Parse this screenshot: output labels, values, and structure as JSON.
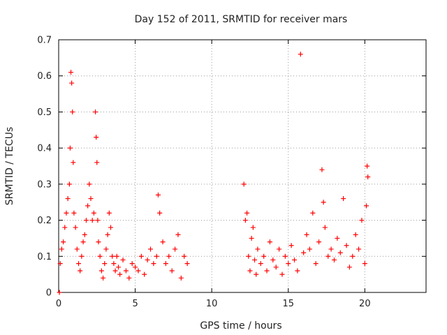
{
  "chart_data": {
    "type": "scatter",
    "title": "Day 152 of 2011, SRMTID for receiver mars",
    "xlabel": "GPS time / hours",
    "ylabel": "SRMTID / TECUs",
    "xlim": [
      0,
      24
    ],
    "ylim": [
      0,
      0.7
    ],
    "xticks": [
      0,
      5,
      10,
      15,
      20
    ],
    "xtick_labels": [
      "0",
      "5",
      "10",
      "15",
      "20"
    ],
    "yticks": [
      0,
      0.1,
      0.2,
      0.3,
      0.4,
      0.5,
      0.6,
      0.7
    ],
    "ytick_labels": [
      "0",
      "0.1",
      "0.2",
      "0.3",
      "0.4",
      "0.5",
      "0.6",
      "0.7"
    ],
    "grid": true,
    "marker": "+",
    "colors": {
      "series": "#ff0000",
      "axis": "#000000",
      "grid": "#9a9a9a"
    },
    "series": [
      {
        "name": "SRMTID",
        "x": [
          0.05,
          0.1,
          0.2,
          0.3,
          0.4,
          0.5,
          0.6,
          0.7,
          0.75,
          0.8,
          0.85,
          0.9,
          0.95,
          1.0,
          1.1,
          1.2,
          1.3,
          1.4,
          1.5,
          1.6,
          1.7,
          1.8,
          1.9,
          2.0,
          2.1,
          2.2,
          2.3,
          2.4,
          2.45,
          2.5,
          2.55,
          2.6,
          2.7,
          2.8,
          2.9,
          3.0,
          3.1,
          3.2,
          3.3,
          3.4,
          3.5,
          3.6,
          3.7,
          3.8,
          3.9,
          4.0,
          4.2,
          4.4,
          4.6,
          4.8,
          5.0,
          5.2,
          5.4,
          5.6,
          5.8,
          6.0,
          6.2,
          6.4,
          6.5,
          6.6,
          6.8,
          7.0,
          7.2,
          7.4,
          7.6,
          7.8,
          8.0,
          8.2,
          8.4,
          12.1,
          12.2,
          12.3,
          12.4,
          12.5,
          12.6,
          12.7,
          12.8,
          12.9,
          13.0,
          13.2,
          13.4,
          13.6,
          13.8,
          14.0,
          14.2,
          14.4,
          14.6,
          14.8,
          15.0,
          15.2,
          15.4,
          15.6,
          15.8,
          16.0,
          16.2,
          16.4,
          16.6,
          16.8,
          17.0,
          17.2,
          17.3,
          17.4,
          17.6,
          17.8,
          18.0,
          18.2,
          18.4,
          18.6,
          18.8,
          19.0,
          19.2,
          19.4,
          19.6,
          19.8,
          20.0,
          20.1,
          20.15,
          20.2
        ],
        "y": [
          0.0,
          0.08,
          0.12,
          0.14,
          0.18,
          0.22,
          0.26,
          0.3,
          0.4,
          0.61,
          0.58,
          0.5,
          0.36,
          0.22,
          0.18,
          0.12,
          0.08,
          0.06,
          0.1,
          0.14,
          0.16,
          0.2,
          0.24,
          0.3,
          0.26,
          0.2,
          0.22,
          0.5,
          0.43,
          0.36,
          0.2,
          0.14,
          0.1,
          0.06,
          0.04,
          0.08,
          0.12,
          0.16,
          0.22,
          0.18,
          0.1,
          0.08,
          0.06,
          0.1,
          0.07,
          0.05,
          0.09,
          0.06,
          0.04,
          0.08,
          0.07,
          0.06,
          0.1,
          0.05,
          0.09,
          0.12,
          0.08,
          0.1,
          0.27,
          0.22,
          0.14,
          0.08,
          0.1,
          0.06,
          0.12,
          0.16,
          0.04,
          0.1,
          0.08,
          0.3,
          0.2,
          0.22,
          0.1,
          0.06,
          0.15,
          0.18,
          0.09,
          0.05,
          0.12,
          0.08,
          0.1,
          0.06,
          0.14,
          0.09,
          0.07,
          0.12,
          0.05,
          0.1,
          0.08,
          0.13,
          0.09,
          0.06,
          0.66,
          0.11,
          0.16,
          0.12,
          0.22,
          0.08,
          0.14,
          0.34,
          0.25,
          0.18,
          0.1,
          0.12,
          0.09,
          0.15,
          0.11,
          0.26,
          0.13,
          0.07,
          0.1,
          0.16,
          0.12,
          0.2,
          0.08,
          0.24,
          0.35,
          0.32
        ]
      }
    ]
  }
}
